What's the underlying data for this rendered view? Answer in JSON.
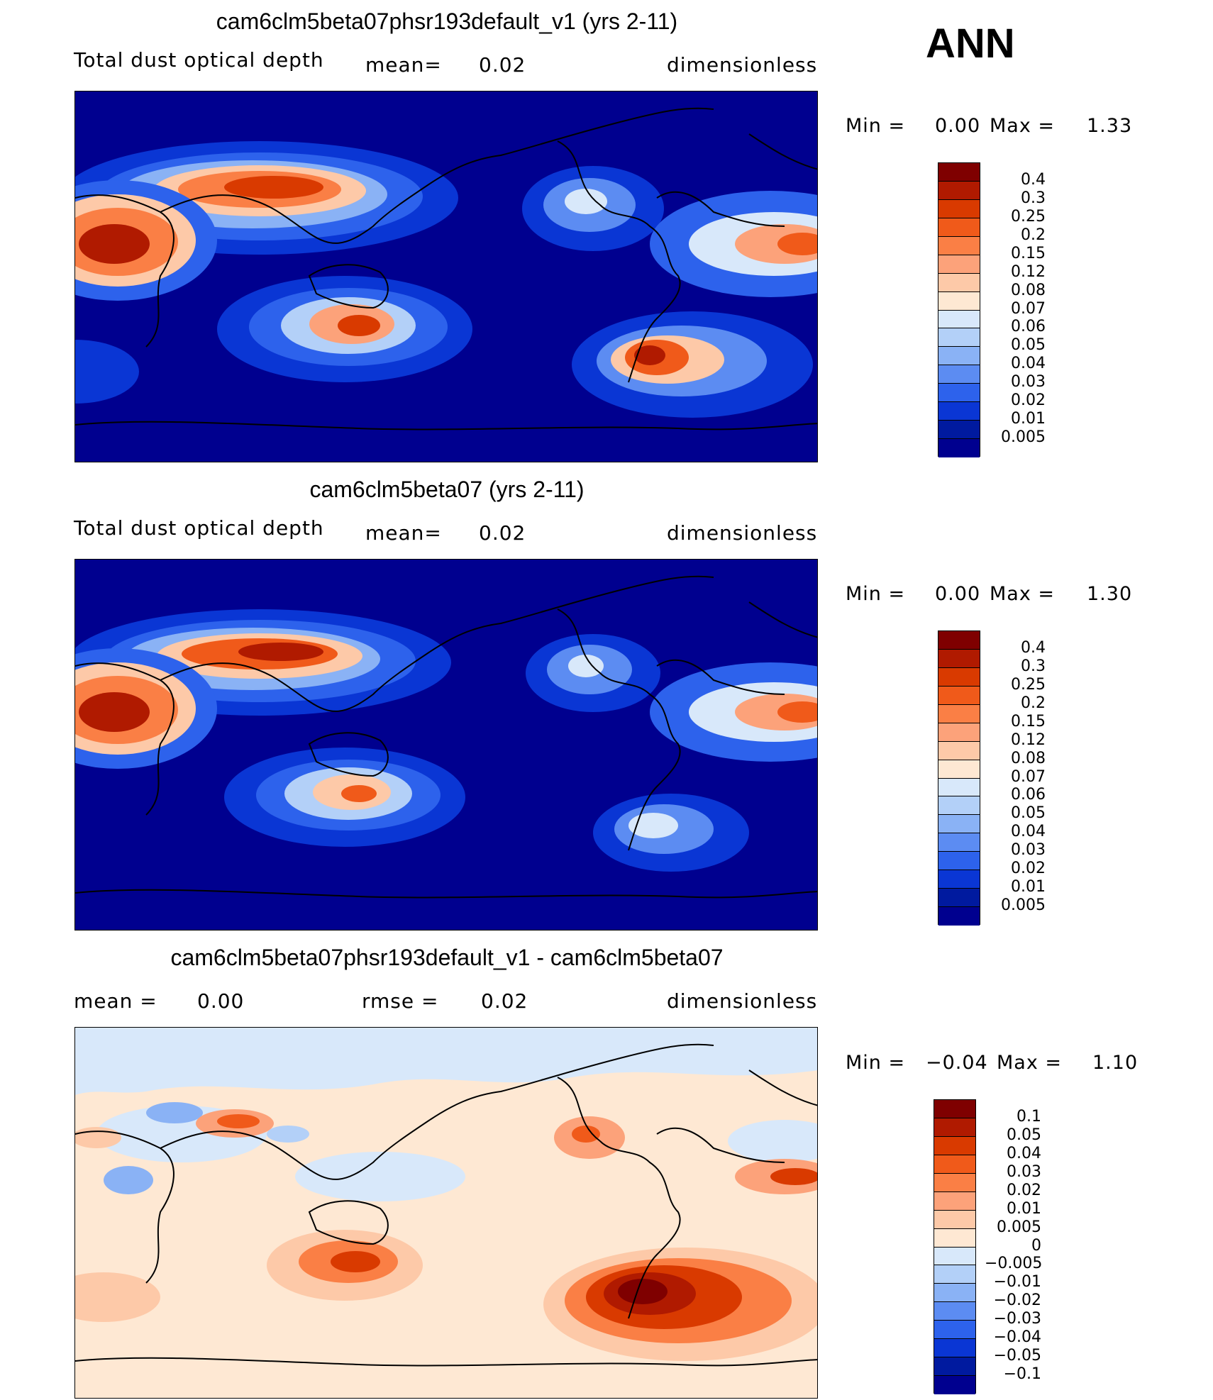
{
  "header": {
    "season": "ANN"
  },
  "panels": [
    {
      "id": "test",
      "title": "cam6clm5beta07phsr193default_v1 (yrs 2-11)",
      "field_label": "Total dust optical depth",
      "stat1_label": "mean=",
      "stat1_value": "0.02",
      "units": "dimensionless",
      "min_label": "Min  =",
      "min_value": "0.00",
      "max_label": "Max  =",
      "max_value": "1.33",
      "background": "#00008f",
      "colorbar": {
        "labels": [
          "0.4",
          "0.3",
          "0.25",
          "0.2",
          "0.15",
          "0.12",
          "0.08",
          "0.07",
          "0.06",
          "0.05",
          "0.04",
          "0.03",
          "0.02",
          "0.01",
          "0.005"
        ],
        "colors": [
          "#7f0000",
          "#b01a00",
          "#d93a00",
          "#f05a1a",
          "#fa7f45",
          "#fca27a",
          "#fdc9a8",
          "#fee8d3",
          "#d8e8fa",
          "#b3d0f8",
          "#8ab2f5",
          "#5c8cf2",
          "#2d62ec",
          "#0a36d4",
          "#001a9f",
          "#00008f"
        ]
      }
    },
    {
      "id": "control",
      "title": "cam6clm5beta07 (yrs 2-11)",
      "field_label": "Total dust optical depth",
      "stat1_label": "mean=",
      "stat1_value": "0.02",
      "units": "dimensionless",
      "min_label": "Min  =",
      "min_value": "0.00",
      "max_label": "Max  =",
      "max_value": "1.30",
      "background": "#00008f",
      "colorbar": {
        "labels": [
          "0.4",
          "0.3",
          "0.25",
          "0.2",
          "0.15",
          "0.12",
          "0.08",
          "0.07",
          "0.06",
          "0.05",
          "0.04",
          "0.03",
          "0.02",
          "0.01",
          "0.005"
        ],
        "colors": [
          "#7f0000",
          "#b01a00",
          "#d93a00",
          "#f05a1a",
          "#fa7f45",
          "#fca27a",
          "#fdc9a8",
          "#fee8d3",
          "#d8e8fa",
          "#b3d0f8",
          "#8ab2f5",
          "#5c8cf2",
          "#2d62ec",
          "#0a36d4",
          "#001a9f",
          "#00008f"
        ]
      }
    },
    {
      "id": "diff",
      "title": "cam6clm5beta07phsr193default_v1 - cam6clm5beta07",
      "field_label": "mean  =",
      "field_value": "0.00",
      "stat1_label": "rmse  =",
      "stat1_value": "0.02",
      "units": "dimensionless",
      "min_label": "Min  =",
      "min_value": "−0.04",
      "max_label": "Max  =",
      "max_value": "1.10",
      "background": "#fee8d3",
      "colorbar": {
        "labels": [
          "0.1",
          "0.05",
          "0.04",
          "0.03",
          "0.02",
          "0.01",
          "0.005",
          "0",
          "−0.005",
          "−0.01",
          "−0.02",
          "−0.03",
          "−0.04",
          "−0.05",
          "−0.1"
        ],
        "colors": [
          "#7f0000",
          "#b01a00",
          "#d93a00",
          "#f05a1a",
          "#fa7f45",
          "#fca27a",
          "#fdc9a8",
          "#fee8d3",
          "#d8e8fa",
          "#b3d0f8",
          "#8ab2f5",
          "#5c8cf2",
          "#2d62ec",
          "#0a36d4",
          "#001a9f",
          "#00008f"
        ]
      }
    }
  ]
}
